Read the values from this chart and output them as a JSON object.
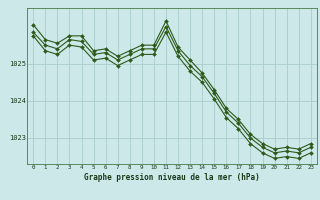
{
  "xlabel": "Graphe pression niveau de la mer (hPa)",
  "bg_color": "#cce8e8",
  "grid_color": "#aacccc",
  "line_color": "#2d5a1b",
  "marker": "D",
  "markersize": 2.0,
  "linewidth": 0.8,
  "xlim": [
    -0.5,
    23.5
  ],
  "ylim": [
    1022.3,
    1026.5
  ],
  "yticks": [
    1023,
    1024,
    1025
  ],
  "xticks": [
    0,
    1,
    2,
    3,
    4,
    5,
    6,
    7,
    8,
    9,
    10,
    11,
    12,
    13,
    14,
    15,
    16,
    17,
    18,
    19,
    20,
    21,
    22,
    23
  ],
  "series": [
    {
      "x": [
        0,
        1,
        2,
        3,
        4,
        5,
        6,
        7,
        8,
        9,
        10,
        11,
        12,
        13,
        14,
        15,
        16,
        17,
        18,
        19,
        20,
        21,
        22,
        23
      ],
      "y": [
        1026.05,
        1025.65,
        1025.55,
        1025.75,
        1025.75,
        1025.35,
        1025.4,
        1025.2,
        1025.35,
        1025.5,
        1025.5,
        1026.15,
        1025.45,
        1025.1,
        1024.75,
        1024.3,
        1023.8,
        1023.5,
        1023.1,
        1022.85,
        1022.7,
        1022.75,
        1022.7,
        1022.85
      ]
    },
    {
      "x": [
        0,
        1,
        2,
        3,
        4,
        5,
        6,
        7,
        8,
        9,
        10,
        11,
        12,
        13,
        14,
        15,
        16,
        17,
        18,
        19,
        20,
        21,
        22,
        23
      ],
      "y": [
        1025.85,
        1025.5,
        1025.4,
        1025.65,
        1025.6,
        1025.25,
        1025.3,
        1025.1,
        1025.25,
        1025.4,
        1025.4,
        1026.0,
        1025.35,
        1024.95,
        1024.65,
        1024.2,
        1023.7,
        1023.4,
        1023.0,
        1022.75,
        1022.6,
        1022.65,
        1022.6,
        1022.75
      ]
    },
    {
      "x": [
        0,
        1,
        2,
        3,
        4,
        5,
        6,
        7,
        8,
        9,
        10,
        11,
        12,
        13,
        14,
        15,
        16,
        17,
        18,
        19,
        20,
        21,
        22,
        23
      ],
      "y": [
        1025.75,
        1025.35,
        1025.25,
        1025.5,
        1025.45,
        1025.1,
        1025.15,
        1024.95,
        1025.1,
        1025.25,
        1025.25,
        1025.85,
        1025.2,
        1024.8,
        1024.5,
        1024.05,
        1023.55,
        1023.25,
        1022.85,
        1022.6,
        1022.45,
        1022.5,
        1022.45,
        1022.6
      ]
    }
  ]
}
